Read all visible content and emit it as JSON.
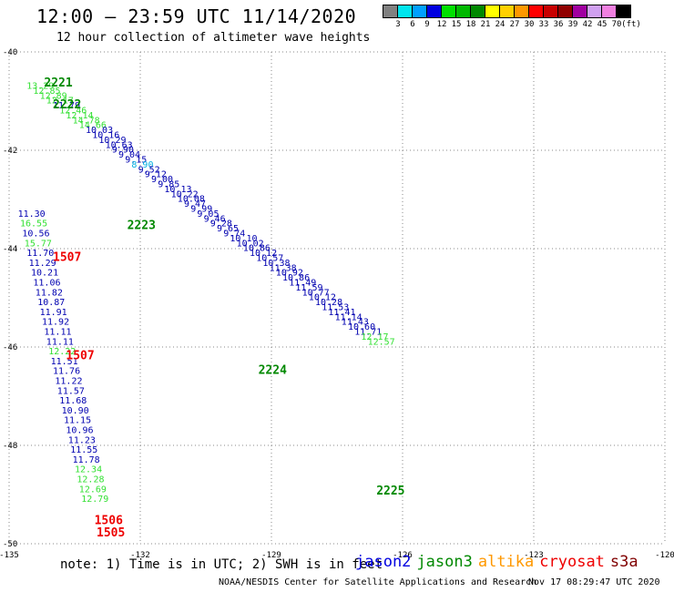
{
  "header": {
    "title": "12:00 – 23:59 UTC 11/14/2020",
    "subtitle": "12 hour collection of altimeter wave heights"
  },
  "legend": {
    "unit": "(ft)",
    "entries": [
      {
        "label": "3",
        "color": "#808080"
      },
      {
        "label": "6",
        "color": "#00e5ee"
      },
      {
        "label": "9",
        "color": "#00a0ff"
      },
      {
        "label": "12",
        "color": "#0000e0"
      },
      {
        "label": "15",
        "color": "#00e000"
      },
      {
        "label": "18",
        "color": "#00b800"
      },
      {
        "label": "21",
        "color": "#008800"
      },
      {
        "label": "24",
        "color": "#ffff00"
      },
      {
        "label": "27",
        "color": "#ffd000"
      },
      {
        "label": "30",
        "color": "#ff9800"
      },
      {
        "label": "33",
        "color": "#ff0000"
      },
      {
        "label": "36",
        "color": "#c80000"
      },
      {
        "label": "39",
        "color": "#900000"
      },
      {
        "label": "42",
        "color": "#a000a0"
      },
      {
        "label": "45",
        "color": "#d0a0f0"
      },
      {
        "label": "70",
        "color": "#f080e0"
      },
      {
        "label": "(ft)",
        "color": "#000000"
      }
    ]
  },
  "map": {
    "lon_range": [
      -135,
      -120
    ],
    "lat_range": [
      -50,
      -40
    ],
    "lon_ticks": [
      {
        "lon": -135,
        "label": "-135"
      },
      {
        "lon": -132,
        "label": "-132"
      },
      {
        "lon": -129,
        "label": "-129"
      },
      {
        "lon": -126,
        "label": "-126"
      },
      {
        "lon": -123,
        "label": "-123"
      },
      {
        "lon": -120,
        "label": "-120"
      }
    ],
    "lat_ticks": [
      {
        "lat": -40,
        "label": "-40"
      },
      {
        "lat": -42,
        "label": "-42"
      },
      {
        "lat": -44,
        "label": "-44"
      },
      {
        "lat": -46,
        "label": "-46"
      },
      {
        "lat": -48,
        "label": "-48"
      },
      {
        "lat": -50,
        "label": "-50"
      }
    ],
    "colors": {
      "jason2": "#0000b0",
      "jason3": "#008800",
      "altika": "#ff9800",
      "cryosat": "#ee0000",
      "s3a": "#800000",
      "h9": "#00b0e0",
      "h12": "#0000b0",
      "h15": "#33e033"
    },
    "track_a": {
      "start": {
        "lon": -134.6,
        "lat": -40.75
      },
      "step": {
        "dlon": 0.15,
        "dlat": -0.1
      },
      "values": [
        "13.29",
        "12.85",
        "12.89",
        "12.17",
        "11.79",
        "12.46",
        "12.14",
        "14.78",
        "14.66",
        "10.03",
        "10.16",
        "10.29",
        "10.63",
        "9.90",
        "9.04",
        "9.15",
        "8.90",
        "9.52",
        "9.12",
        "9.00",
        "9.85",
        "10.13",
        "10.22",
        "10.08",
        "9.47",
        "9.99",
        "9.05",
        "9.46",
        "9.28",
        "9.65",
        "9.74",
        "10.10",
        "10.02",
        "10.86",
        "10.12",
        "10.57",
        "10.38",
        "11.38",
        "10.92",
        "10.86",
        "11.49",
        "11.59",
        "10.77",
        "10.12",
        "10.28",
        "11.53",
        "11.41",
        "11.14",
        "11.43",
        "10.60",
        "11.71",
        "12.17",
        "12.57"
      ]
    },
    "track_b": {
      "start": {
        "lon": -134.8,
        "lat": -43.35
      },
      "step": {
        "dlon": 0.05,
        "dlat": -0.2
      },
      "values": [
        "11.30",
        "16.55",
        "10.56",
        "15.77",
        "11.70",
        "11.29",
        "10.21",
        "11.06",
        "11.82",
        "10.87",
        "11.91",
        "11.92",
        "11.11",
        "11.11",
        "12.22",
        "11.51",
        "11.76",
        "11.22",
        "11.57",
        "11.68",
        "10.90",
        "11.15",
        "10.96",
        "11.23",
        "11.55",
        "11.78",
        "12.34",
        "12.28",
        "12.69",
        "12.79"
      ]
    },
    "pass_labels": [
      {
        "text": "2221",
        "sat": "jason3",
        "lon": -134.2,
        "lat": -40.7
      },
      {
        "text": "2222",
        "sat": "jason3",
        "lon": -134.0,
        "lat": -41.15
      },
      {
        "text": "2223",
        "sat": "jason3",
        "lon": -132.3,
        "lat": -43.6
      },
      {
        "text": "2224",
        "sat": "jason3",
        "lon": -129.3,
        "lat": -46.55
      },
      {
        "text": "2225",
        "sat": "jason3",
        "lon": -126.6,
        "lat": -49.0
      },
      {
        "text": "1507",
        "sat": "cryosat",
        "lon": -134.0,
        "lat": -44.25
      },
      {
        "text": "1507",
        "sat": "cryosat",
        "lon": -133.7,
        "lat": -46.25
      },
      {
        "text": "1506",
        "sat": "cryosat",
        "lon": -133.05,
        "lat": -49.6
      },
      {
        "text": "1505",
        "sat": "cryosat",
        "lon": -133.0,
        "lat": -49.85
      }
    ]
  },
  "note": "note: 1) Time is in UTC; 2) SWH is in feet",
  "satellites": [
    {
      "name": "jason2",
      "color": "#0000e0"
    },
    {
      "name": "jason3",
      "color": "#008800"
    },
    {
      "name": "altika",
      "color": "#ff9800"
    },
    {
      "name": "cryosat",
      "color": "#ee0000"
    },
    {
      "name": "s3a",
      "color": "#800000"
    }
  ],
  "footer": {
    "credit": "NOAA/NESDIS Center for Satellite Applications and Research",
    "timestamp": "Nov 17 08:29:47 UTC 2020"
  }
}
